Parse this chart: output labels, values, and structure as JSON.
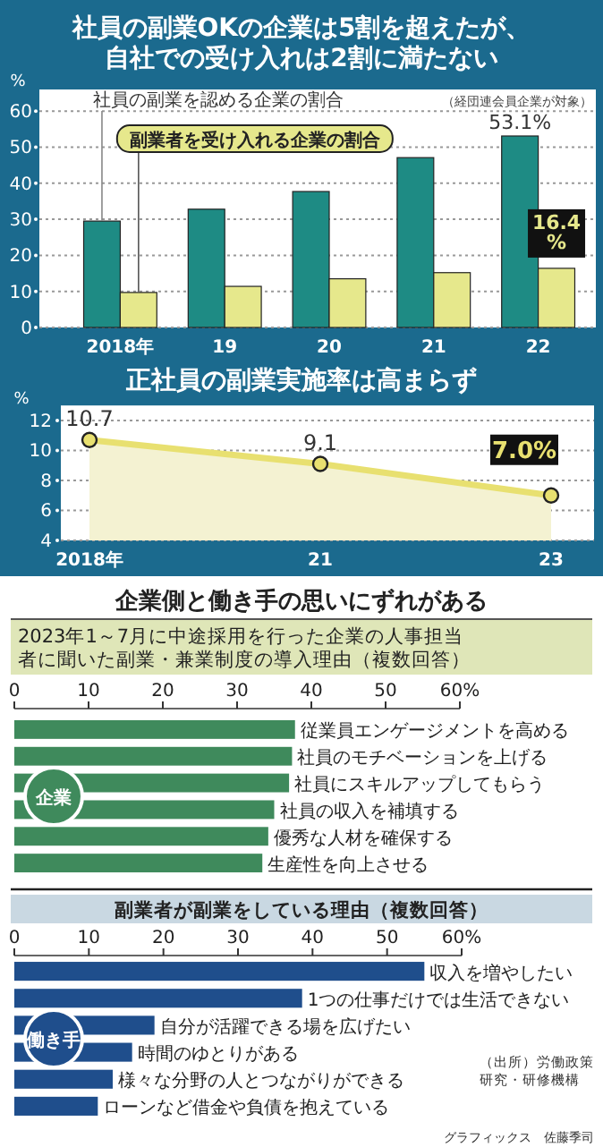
{
  "chart_data": [
    {
      "type": "bar",
      "title": "社員の副業OKの企業は5割を超えたが、自社での受け入れは2割に満たない",
      "ylabel": "%",
      "categories": [
        "2018年",
        "19",
        "20",
        "21",
        "22"
      ],
      "series": [
        {
          "name": "社員の副業を認める企業の割合",
          "color": "#1e8b84",
          "values": [
            29.5,
            32.8,
            37.7,
            47.1,
            53.1
          ],
          "value_labels": [
            null,
            null,
            null,
            null,
            "53.1%"
          ]
        },
        {
          "name": "副業者を受け入れる企業の割合",
          "color": "#e6e88c",
          "values": [
            9.7,
            11.4,
            13.5,
            15.2,
            16.4
          ],
          "value_labels": [
            null,
            null,
            null,
            null,
            "16.4%"
          ]
        }
      ],
      "ylim": [
        0,
        66
      ],
      "yticks": [
        0,
        10,
        20,
        30,
        40,
        50,
        60
      ],
      "grid": "y",
      "annotations": [
        "（経団連会員企業が対象）"
      ]
    },
    {
      "type": "area",
      "title": "正社員の副業実施率は高まらず",
      "ylabel": "%",
      "categories": [
        "2018年",
        "21",
        "23"
      ],
      "series": [
        {
          "color": "#e8e070",
          "values": [
            10.7,
            9.1,
            7.0
          ],
          "value_labels": [
            "10.7",
            "9.1",
            "7.0%"
          ]
        }
      ],
      "ylim": [
        4,
        13
      ],
      "yticks": [
        4,
        6,
        8,
        10,
        12
      ],
      "grid": "y",
      "marker": "circle"
    },
    {
      "type": "bar",
      "orientation": "horizontal",
      "title": "企業側と働き手の思いにずれがある",
      "subtitle": "2023年1～7月に中途採用を行った企業の人事担当者に聞いた副業・兼業制度の導入理由（複数回答）",
      "categories": [
        "従業員エンゲージメントを高める",
        "社員のモチベーションを上げる",
        "社員にスキルアップしてもらう",
        "社員の収入を補填する",
        "優秀な人材を確保する",
        "生産性を向上させる"
      ],
      "series": [
        {
          "color": "#3f8a5c",
          "values": [
            37.8,
            37.4,
            37.0,
            35.0,
            34.2,
            33.4
          ]
        }
      ],
      "xlim": [
        0,
        60
      ],
      "xticks": [
        0,
        10,
        20,
        30,
        40,
        50,
        {
          "value": 60,
          "label": "60%"
        }
      ],
      "annotations": [
        "企業"
      ]
    },
    {
      "type": "bar",
      "orientation": "horizontal",
      "title": "副業者が副業をしている理由（複数回答）",
      "categories": [
        "収入を増やしたい",
        "1つの仕事だけでは生活できない",
        "自分が活躍できる場を広げたい",
        "時間のゆとりがある",
        "様々な分野の人とつながりができる",
        "ローンなど借金や負債を抱えている"
      ],
      "series": [
        {
          "color": "#1f4e8c",
          "values": [
            55.0,
            38.6,
            18.8,
            15.8,
            13.2,
            11.2
          ]
        }
      ],
      "xlim": [
        0,
        60
      ],
      "xticks": [
        0,
        10,
        20,
        30,
        40,
        50,
        {
          "value": 60,
          "label": "60%"
        }
      ],
      "annotations": [
        "働き手",
        "（出所）労働政策研究・研修機構",
        "グラフィックス　佐藤季司"
      ]
    }
  ]
}
